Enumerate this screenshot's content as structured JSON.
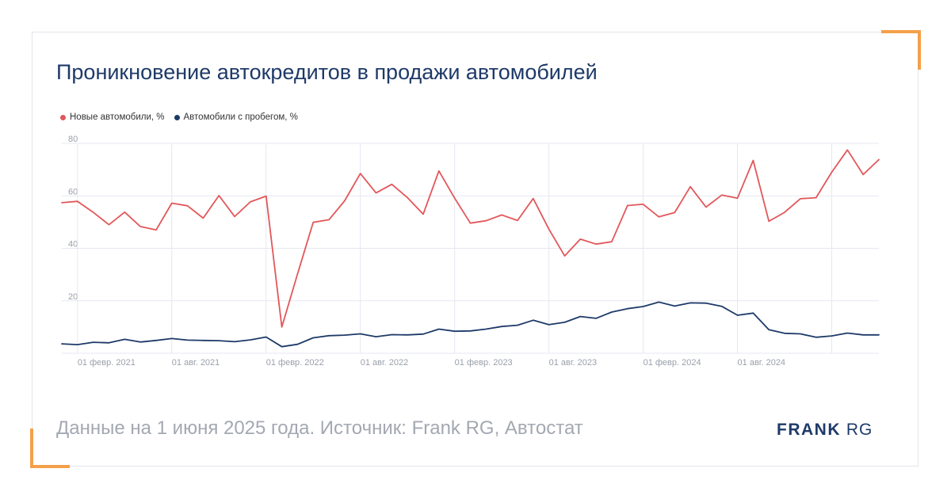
{
  "title": "Проникновение автокредитов в продажи автомобилей",
  "footer": "Данные на 1 июня 2025 года. Источник: Frank RG, Автостат",
  "logo": {
    "bold": "FRANK",
    "light": " RG"
  },
  "colors": {
    "accent": "#f4a04a",
    "new": "#e2575a",
    "used": "#1e3a68",
    "grid": "#e6e8f0"
  },
  "chart_data": {
    "type": "line",
    "title": "Проникновение автокредитов в продажи автомобилей",
    "xlabel": "",
    "ylabel": "",
    "ylim": [
      0,
      80
    ],
    "yticks": [
      20,
      40,
      60,
      80
    ],
    "grid": true,
    "legend_position": "top-left",
    "x": [
      "2021-01",
      "2021-02",
      "2021-03",
      "2021-04",
      "2021-05",
      "2021-06",
      "2021-07",
      "2021-08",
      "2021-09",
      "2021-10",
      "2021-11",
      "2021-12",
      "2022-01",
      "2022-02",
      "2022-03",
      "2022-04",
      "2022-05",
      "2022-06",
      "2022-07",
      "2022-08",
      "2022-09",
      "2022-10",
      "2022-11",
      "2022-12",
      "2023-01",
      "2023-02",
      "2023-03",
      "2023-04",
      "2023-05",
      "2023-06",
      "2023-07",
      "2023-08",
      "2023-09",
      "2023-10",
      "2023-11",
      "2023-12",
      "2024-01",
      "2024-02",
      "2024-03",
      "2024-04",
      "2024-05",
      "2024-06",
      "2024-07",
      "2024-08",
      "2024-09",
      "2024-10",
      "2024-11",
      "2024-12",
      "2025-01",
      "2025-02",
      "2025-03",
      "2025-04",
      "2025-05"
    ],
    "x_ticks": [
      {
        "at": "2021-02",
        "label": "01 февр. 2021"
      },
      {
        "at": "2021-08",
        "label": "01 авг. 2021"
      },
      {
        "at": "2022-02",
        "label": "01 февр. 2022"
      },
      {
        "at": "2022-08",
        "label": "01 авг. 2022"
      },
      {
        "at": "2023-02",
        "label": "01 февр. 2023"
      },
      {
        "at": "2023-08",
        "label": "01 авг. 2023"
      },
      {
        "at": "2024-02",
        "label": "01 февр. 2024"
      },
      {
        "at": "2024-08",
        "label": "01 авг. 2024"
      },
      {
        "at": "2025-02",
        "label": ""
      }
    ],
    "series": [
      {
        "name": "Новые автомобили, %",
        "color": "#e2575a",
        "values": [
          57.4,
          57.9,
          53.7,
          49.0,
          53.8,
          48.3,
          47.0,
          57.2,
          56.2,
          51.5,
          60.1,
          52.1,
          57.7,
          59.9,
          10.0,
          30.2,
          49.9,
          50.9,
          58.1,
          68.5,
          61.1,
          64.4,
          59.3,
          53.0,
          69.5,
          59.1,
          49.6,
          50.5,
          52.7,
          50.6,
          59.0,
          47.3,
          37.1,
          43.5,
          41.6,
          42.5,
          56.3,
          56.8,
          52.0,
          53.6,
          63.5,
          55.7,
          60.3,
          59.1,
          73.5,
          50.3,
          53.7,
          58.9,
          59.3,
          69.0,
          77.5,
          68.1,
          73.8
        ]
      },
      {
        "name": "Автомобили с пробегом, %",
        "color": "#1e3a68",
        "values": [
          3.6,
          3.3,
          4.2,
          4.0,
          5.3,
          4.3,
          4.9,
          5.6,
          5.0,
          4.9,
          4.8,
          4.4,
          5.1,
          6.2,
          2.5,
          3.4,
          5.9,
          6.7,
          6.9,
          7.4,
          6.3,
          7.1,
          7.0,
          7.3,
          9.2,
          8.4,
          8.5,
          9.2,
          10.2,
          10.7,
          12.6,
          10.9,
          11.8,
          14.0,
          13.3,
          15.7,
          17.0,
          17.8,
          19.5,
          18.0,
          19.2,
          19.1,
          17.9,
          14.5,
          15.3,
          9.0,
          7.6,
          7.4,
          6.1,
          6.6,
          7.7,
          7.0,
          7.0
        ]
      }
    ]
  }
}
